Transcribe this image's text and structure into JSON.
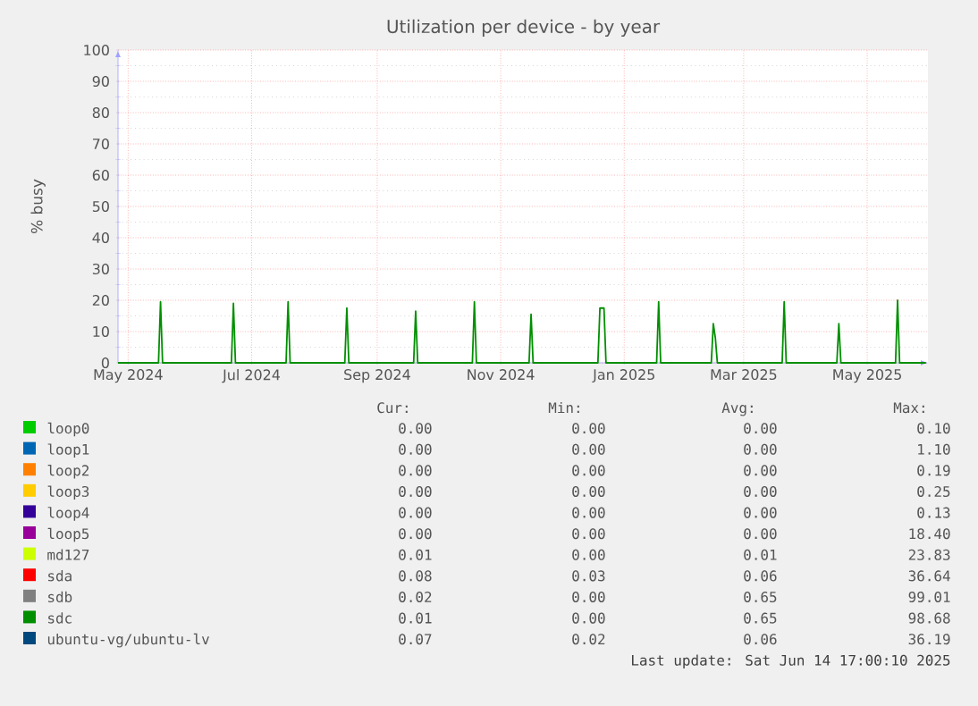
{
  "chart_data": {
    "type": "line",
    "title": "Utilization per device - by year",
    "ylabel": "% busy",
    "xlim": [
      "2024-05-11",
      "2025-06-15"
    ],
    "ylim": [
      0,
      100
    ],
    "xticks": [
      {
        "value": "2024-05-16",
        "label": "May 2024"
      },
      {
        "value": "2024-07-16",
        "label": "Jul 2024"
      },
      {
        "value": "2024-09-16",
        "label": "Sep 2024"
      },
      {
        "value": "2024-11-16",
        "label": "Nov 2024"
      },
      {
        "value": "2025-01-16",
        "label": "Jan 2025"
      },
      {
        "value": "2025-03-16",
        "label": "Mar 2025"
      },
      {
        "value": "2025-05-16",
        "label": "May 2025"
      }
    ],
    "yticks": [
      0,
      10,
      20,
      30,
      40,
      50,
      60,
      70,
      80,
      90,
      100
    ],
    "grid": true,
    "legend": "bottom",
    "series": [
      {
        "name": "loop0",
        "color": "#00cc00",
        "values": [
          null,
          null
        ]
      },
      {
        "name": "loop1",
        "color": "#0066b3",
        "values": [
          null,
          null
        ]
      },
      {
        "name": "loop2",
        "color": "#ff8000",
        "values": [
          null,
          null
        ]
      },
      {
        "name": "loop3",
        "color": "#ffcc00",
        "values": [
          null,
          null
        ]
      },
      {
        "name": "loop4",
        "color": "#330099",
        "values": [
          null,
          null
        ]
      },
      {
        "name": "loop5",
        "color": "#990099",
        "values": [
          null,
          null
        ]
      },
      {
        "name": "md127",
        "color": "#ccff00",
        "values": [
          null,
          null
        ]
      },
      {
        "name": "sda",
        "color": "#ff0000",
        "values": [
          null,
          null
        ]
      },
      {
        "name": "sdb",
        "color": "#808080",
        "values": [
          null,
          null
        ]
      },
      {
        "name": "sdc",
        "color": "#008f00",
        "x": [
          "2024-05-11",
          "2024-05-31",
          "2024-06-01",
          "2024-06-02",
          "2024-07-06",
          "2024-07-07",
          "2024-07-08",
          "2024-08-02",
          "2024-08-03",
          "2024-08-04",
          "2024-08-31",
          "2024-09-01",
          "2024-09-02",
          "2024-10-04",
          "2024-10-05",
          "2024-10-06",
          "2024-11-02",
          "2024-11-03",
          "2024-11-04",
          "2024-11-30",
          "2024-12-01",
          "2024-12-02",
          "2025-01-03",
          "2025-01-04",
          "2025-01-06",
          "2025-01-07",
          "2025-02-01",
          "2025-02-02",
          "2025-02-03",
          "2025-02-28",
          "2025-03-01",
          "2025-03-02",
          "2025-03-03",
          "2025-04-04",
          "2025-04-05",
          "2025-04-06",
          "2025-05-01",
          "2025-05-02",
          "2025-05-03",
          "2025-05-30",
          "2025-05-31",
          "2025-06-01",
          "2025-06-14"
        ],
        "values": [
          0,
          0,
          19.5,
          0,
          0,
          19,
          0,
          0,
          19.5,
          0,
          0,
          17.5,
          0,
          0,
          16.5,
          0,
          0,
          19.5,
          0,
          0,
          15.5,
          0,
          0,
          17.5,
          17.5,
          0,
          0,
          19.5,
          0,
          0,
          12.5,
          8,
          0,
          0,
          19.5,
          0,
          0,
          12.5,
          0,
          0,
          20,
          0,
          0
        ]
      },
      {
        "name": "ubuntu-vg/ubuntu-lv",
        "color": "#00487d",
        "values": [
          null,
          null
        ]
      }
    ],
    "annotations": [
      "Cur:",
      "Min:",
      "Avg:",
      "Max:",
      "0.00",
      "0.00",
      "0.00",
      "0.10",
      "0.00",
      "0.00",
      "0.00",
      "1.10",
      "0.00",
      "0.00",
      "0.00",
      "0.19",
      "0.00",
      "0.00",
      "0.00",
      "0.25",
      "0.00",
      "0.00",
      "0.00",
      "0.13",
      "0.00",
      "0.00",
      "0.00",
      "18.40",
      "0.01",
      "0.00",
      "0.01",
      "23.83",
      "0.08",
      "0.03",
      "0.06",
      "36.64",
      "0.02",
      "0.00",
      "0.65",
      "99.01",
      "0.01",
      "0.00",
      "0.65",
      "98.68",
      "0.07",
      "0.02",
      "0.06",
      "36.19",
      "Last update: Sat Jun 14 17:00:10 2025"
    ]
  }
}
